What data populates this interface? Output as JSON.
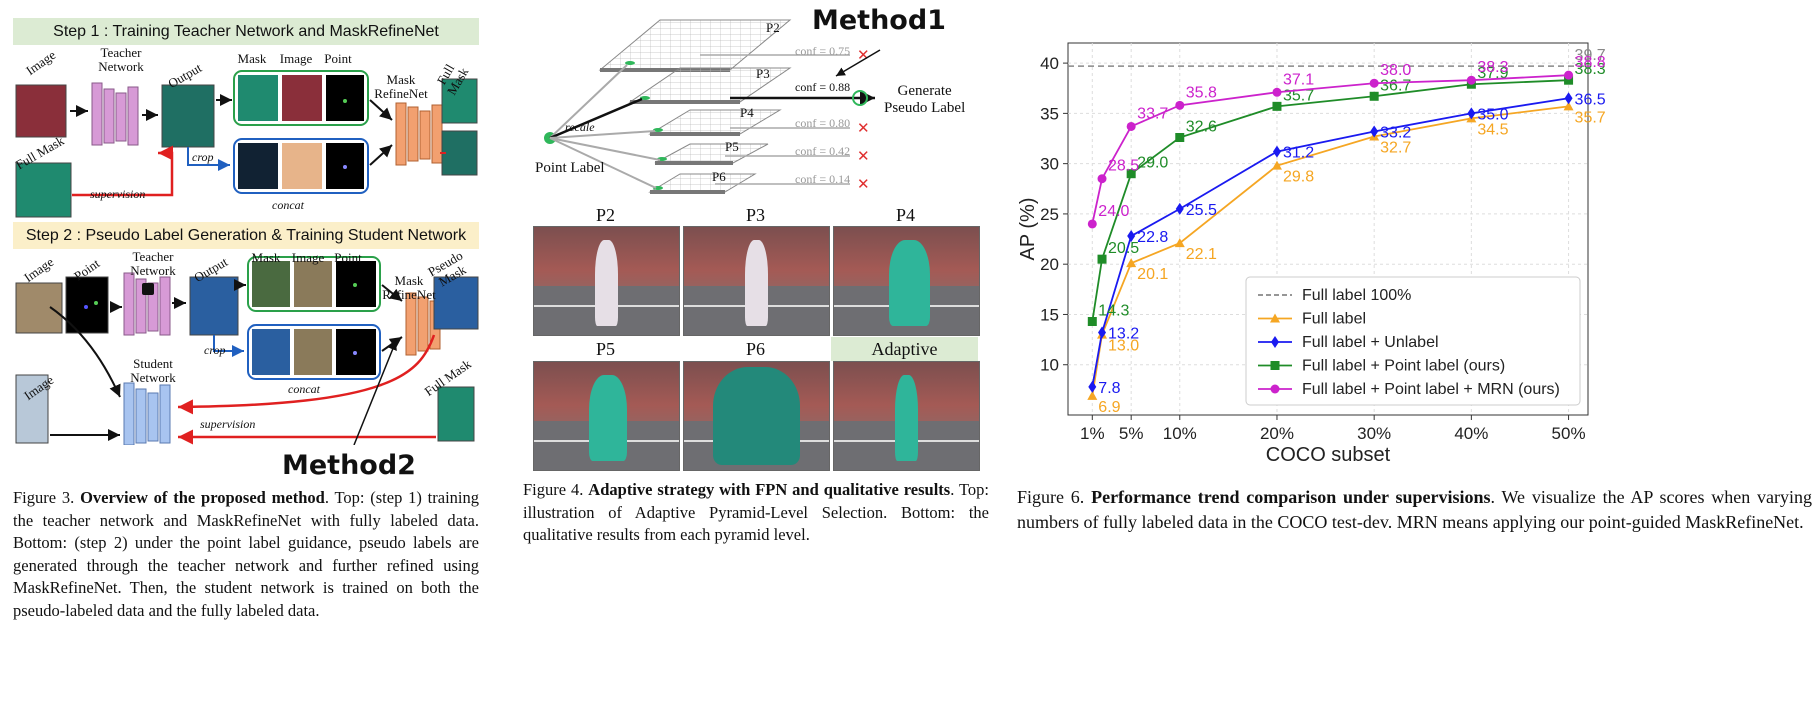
{
  "fig3": {
    "step1": "Step 1 : Training Teacher Network and MaskRefineNet",
    "step2": "Step 2 : Pseudo Label Generation & Training Student Network",
    "labels": {
      "image": "Image",
      "full_mask": "Full Mask",
      "teacher_network": "Teacher Network",
      "output": "Output",
      "mask": "Mask",
      "point": "Point",
      "mask_refinenet": "Mask RefineNet",
      "crop": "crop",
      "concat": "concat",
      "supervision": "supervision",
      "pseudo_mask": "Pseudo Mask",
      "student_network": "Student Network"
    },
    "method2": "Method2",
    "caption_prefix": "Figure 3.",
    "caption_title": "Overview of the proposed method",
    "caption_body": ". Top: (step 1) training the teacher network and MaskRefineNet with fully labeled data. Bottom: (step 2) under the point label guidance, pseudo labels are generated through the teacher network and further refined using MaskRefineNet. Then, the student network is trained on both the pseudo-labeled data and the fully labeled data."
  },
  "fig4": {
    "method1": "Method1",
    "levels": [
      "P2",
      "P3",
      "P4",
      "P5",
      "P6"
    ],
    "confs": [
      "conf = 0.75",
      "conf = 0.88",
      "conf = 0.80",
      "conf = 0.42",
      "conf = 0.14"
    ],
    "generate": "Generate",
    "pseudo_label": "Pseudo Label",
    "recale": "recale",
    "point_label": "Point Label",
    "panels": [
      "P2",
      "P3",
      "P4",
      "P5",
      "P6",
      "Adaptive"
    ],
    "caption_prefix": "Figure 4.",
    "caption_title": "Adaptive strategy with FPN and qualitative results",
    "caption_body": ". Top: illustration of Adaptive Pyramid-Level Selection. Bottom: the qualitative results from each pyramid level."
  },
  "fig6": {
    "caption_prefix": "Figure 6.",
    "caption_title": "Performance trend comparison under supervisions",
    "caption_body": ". We visualize the AP scores when varying numbers of fully labeled data in the COCO test-dev. MRN means applying our point-guided MaskRefineNet."
  },
  "chart_data": {
    "type": "line",
    "xlabel": "COCO subset",
    "ylabel": "AP (%)",
    "x": [
      1,
      2,
      5,
      10,
      20,
      30,
      40,
      50
    ],
    "x_tick_values": [
      1,
      5,
      10,
      20,
      30,
      40,
      50
    ],
    "x_tick_labels": [
      "1%",
      "5%",
      "10%",
      "20%",
      "30%",
      "40%",
      "50%"
    ],
    "y_ticks": [
      10,
      15,
      20,
      25,
      30,
      35,
      40
    ],
    "ylim": [
      5,
      42
    ],
    "xlim": [
      -1.5,
      52
    ],
    "grid": true,
    "legend_position": "lower-right",
    "reference": {
      "name": "Full label 100%",
      "value": 39.7,
      "label": "39.7",
      "color": "#888888"
    },
    "series": [
      {
        "name": "Full label",
        "color": "#f5a623",
        "marker": "triangle",
        "values": [
          6.9,
          13.0,
          20.1,
          22.1,
          29.8,
          32.7,
          34.5,
          35.7
        ]
      },
      {
        "name": "Full label + Unlabel",
        "color": "#1a1af0",
        "marker": "diamond",
        "values": [
          7.8,
          13.2,
          22.8,
          25.5,
          31.2,
          33.2,
          35.0,
          36.5
        ]
      },
      {
        "name": "Full label + Point label (ours)",
        "color": "#1f8c28",
        "marker": "square",
        "values": [
          14.3,
          20.5,
          29.0,
          32.6,
          35.7,
          36.7,
          37.9,
          38.3
        ]
      },
      {
        "name": "Full label + Point label + MRN (ours)",
        "color": "#cc22cc",
        "marker": "circle",
        "values": [
          24.0,
          28.5,
          33.7,
          35.8,
          37.1,
          38.0,
          38.3,
          38.8
        ]
      }
    ]
  }
}
